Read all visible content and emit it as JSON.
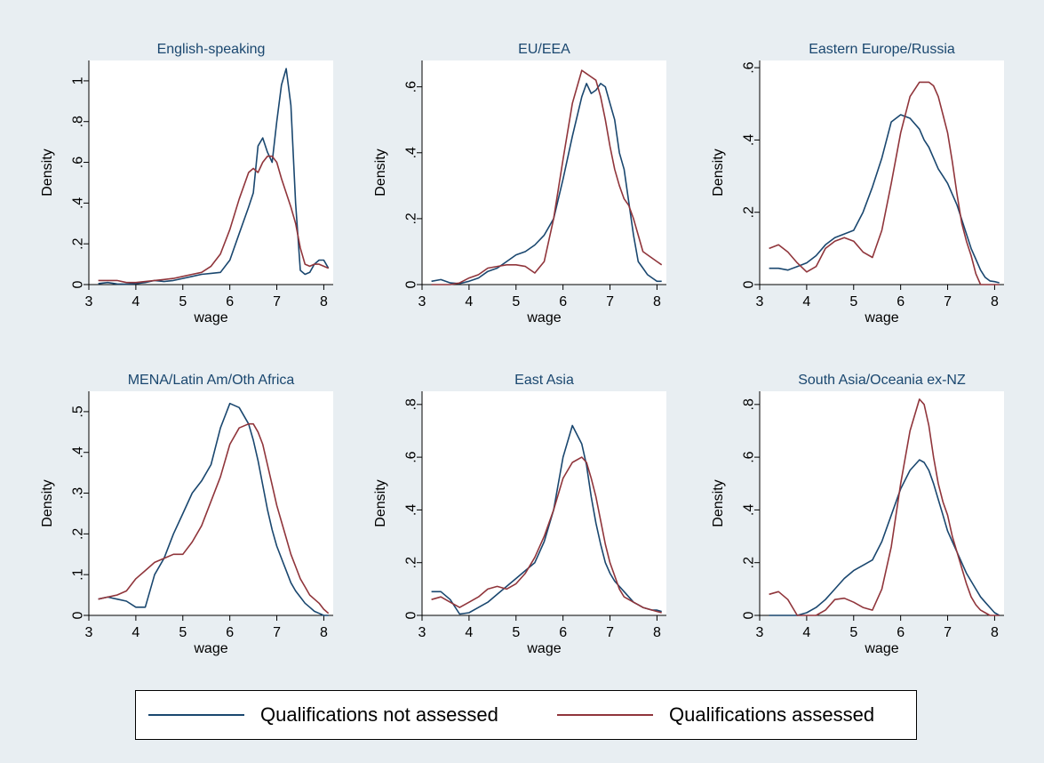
{
  "colors": {
    "background": "#e8eef2",
    "plot_bg": "#ffffff",
    "title": "#1a476f",
    "not_assessed": "#1a476f",
    "assessed": "#90353b"
  },
  "legend": {
    "items": [
      {
        "label": "Qualifications not assessed",
        "color": "#1a476f"
      },
      {
        "label": "Qualifications assessed",
        "color": "#90353b"
      }
    ]
  },
  "chart_data": [
    {
      "type": "line",
      "title": "English-speaking",
      "xlabel": "wage",
      "ylabel": "Density",
      "xlim": [
        3,
        8.2
      ],
      "ylim": [
        0,
        1.1
      ],
      "xticks": [
        3,
        4,
        5,
        6,
        7,
        8
      ],
      "xtick_labels": [
        "3",
        "4",
        "5",
        "6",
        "7",
        "8"
      ],
      "yticks": [
        0,
        0.2,
        0.4,
        0.6,
        0.8,
        1
      ],
      "ytick_labels": [
        "0",
        ".2",
        ".4",
        ".6",
        ".8",
        "1"
      ],
      "series": [
        {
          "name": "Qualifications not assessed",
          "x": [
            3.2,
            3.4,
            3.6,
            3.8,
            4.0,
            4.2,
            4.4,
            4.6,
            4.8,
            5.0,
            5.2,
            5.4,
            5.6,
            5.8,
            6.0,
            6.2,
            6.4,
            6.5,
            6.6,
            6.7,
            6.8,
            6.9,
            7.0,
            7.1,
            7.2,
            7.3,
            7.4,
            7.5,
            7.6,
            7.7,
            7.8,
            7.9,
            8.0,
            8.1
          ],
          "y": [
            0.005,
            0.01,
            0.003,
            0.002,
            0.005,
            0.01,
            0.02,
            0.015,
            0.02,
            0.03,
            0.04,
            0.05,
            0.055,
            0.06,
            0.12,
            0.25,
            0.38,
            0.45,
            0.68,
            0.72,
            0.65,
            0.6,
            0.8,
            0.98,
            1.06,
            0.88,
            0.4,
            0.07,
            0.05,
            0.06,
            0.1,
            0.12,
            0.12,
            0.08
          ]
        },
        {
          "name": "Qualifications assessed",
          "x": [
            3.2,
            3.4,
            3.6,
            3.8,
            4.0,
            4.2,
            4.4,
            4.6,
            4.8,
            5.0,
            5.2,
            5.4,
            5.6,
            5.8,
            6.0,
            6.2,
            6.4,
            6.5,
            6.6,
            6.7,
            6.8,
            6.9,
            7.0,
            7.1,
            7.2,
            7.3,
            7.4,
            7.5,
            7.6,
            7.7,
            7.8,
            7.9,
            8.0,
            8.1
          ],
          "y": [
            0.02,
            0.02,
            0.02,
            0.01,
            0.01,
            0.015,
            0.02,
            0.025,
            0.03,
            0.04,
            0.05,
            0.06,
            0.09,
            0.15,
            0.27,
            0.42,
            0.55,
            0.57,
            0.55,
            0.6,
            0.63,
            0.63,
            0.6,
            0.52,
            0.45,
            0.38,
            0.3,
            0.18,
            0.1,
            0.09,
            0.1,
            0.1,
            0.09,
            0.08
          ]
        }
      ]
    },
    {
      "type": "line",
      "title": "EU/EEA",
      "xlabel": "wage",
      "ylabel": "Density",
      "xlim": [
        3,
        8.2
      ],
      "ylim": [
        0,
        0.68
      ],
      "xticks": [
        3,
        4,
        5,
        6,
        7,
        8
      ],
      "xtick_labels": [
        "3",
        "4",
        "5",
        "6",
        "7",
        "8"
      ],
      "yticks": [
        0,
        0.2,
        0.4,
        0.6
      ],
      "ytick_labels": [
        "0",
        ".2",
        ".4",
        ".6"
      ],
      "series": [
        {
          "name": "Qualifications not assessed",
          "x": [
            3.2,
            3.4,
            3.6,
            3.8,
            4.0,
            4.2,
            4.4,
            4.6,
            4.8,
            5.0,
            5.2,
            5.4,
            5.6,
            5.8,
            6.0,
            6.2,
            6.4,
            6.5,
            6.6,
            6.7,
            6.8,
            6.9,
            7.0,
            7.1,
            7.2,
            7.3,
            7.4,
            7.5,
            7.6,
            7.7,
            7.8,
            7.9,
            8.0,
            8.1
          ],
          "y": [
            0.01,
            0.015,
            0.005,
            0.003,
            0.01,
            0.02,
            0.04,
            0.05,
            0.07,
            0.09,
            0.1,
            0.12,
            0.15,
            0.2,
            0.32,
            0.45,
            0.57,
            0.61,
            0.58,
            0.59,
            0.61,
            0.6,
            0.55,
            0.5,
            0.4,
            0.35,
            0.25,
            0.15,
            0.07,
            0.05,
            0.03,
            0.02,
            0.01,
            0.01
          ]
        },
        {
          "name": "Qualifications assessed",
          "x": [
            3.2,
            3.4,
            3.6,
            3.8,
            4.0,
            4.2,
            4.4,
            4.6,
            4.8,
            5.0,
            5.2,
            5.4,
            5.6,
            5.8,
            6.0,
            6.2,
            6.4,
            6.5,
            6.6,
            6.7,
            6.8,
            6.9,
            7.0,
            7.1,
            7.2,
            7.3,
            7.4,
            7.5,
            7.6,
            7.7,
            7.8,
            7.9,
            8.0,
            8.1
          ],
          "y": [
            0.0,
            0.0,
            0.0,
            0.005,
            0.02,
            0.03,
            0.05,
            0.055,
            0.06,
            0.06,
            0.055,
            0.035,
            0.07,
            0.2,
            0.38,
            0.55,
            0.65,
            0.64,
            0.63,
            0.62,
            0.57,
            0.5,
            0.42,
            0.35,
            0.3,
            0.26,
            0.24,
            0.2,
            0.15,
            0.1,
            0.09,
            0.08,
            0.07,
            0.06
          ]
        }
      ]
    },
    {
      "type": "line",
      "title": "Eastern Europe/Russia",
      "xlabel": "wage",
      "ylabel": "Density",
      "xlim": [
        3,
        8.2
      ],
      "ylim": [
        0,
        0.62
      ],
      "xticks": [
        3,
        4,
        5,
        6,
        7,
        8
      ],
      "xtick_labels": [
        "3",
        "4",
        "5",
        "6",
        "7",
        "8"
      ],
      "yticks": [
        0,
        0.2,
        0.4,
        0.6
      ],
      "ytick_labels": [
        "0",
        ".2",
        ".4",
        ".6"
      ],
      "series": [
        {
          "name": "Qualifications not assessed",
          "x": [
            3.2,
            3.4,
            3.6,
            3.8,
            4.0,
            4.2,
            4.4,
            4.6,
            4.8,
            5.0,
            5.2,
            5.4,
            5.6,
            5.8,
            6.0,
            6.2,
            6.4,
            6.5,
            6.6,
            6.7,
            6.8,
            6.9,
            7.0,
            7.1,
            7.2,
            7.3,
            7.4,
            7.5,
            7.6,
            7.7,
            7.8,
            7.9,
            8.0,
            8.1
          ],
          "y": [
            0.045,
            0.045,
            0.04,
            0.05,
            0.06,
            0.08,
            0.11,
            0.13,
            0.14,
            0.15,
            0.2,
            0.27,
            0.35,
            0.45,
            0.47,
            0.46,
            0.43,
            0.4,
            0.38,
            0.35,
            0.32,
            0.3,
            0.28,
            0.25,
            0.22,
            0.18,
            0.14,
            0.1,
            0.07,
            0.04,
            0.02,
            0.01,
            0.008,
            0.005
          ]
        },
        {
          "name": "Qualifications assessed",
          "x": [
            3.2,
            3.4,
            3.6,
            3.8,
            4.0,
            4.2,
            4.4,
            4.6,
            4.8,
            5.0,
            5.2,
            5.4,
            5.6,
            5.8,
            6.0,
            6.2,
            6.4,
            6.5,
            6.6,
            6.7,
            6.8,
            6.9,
            7.0,
            7.1,
            7.2,
            7.3,
            7.4,
            7.5,
            7.6,
            7.7,
            7.8,
            7.9,
            8.0,
            8.1
          ],
          "y": [
            0.1,
            0.11,
            0.09,
            0.06,
            0.035,
            0.05,
            0.1,
            0.12,
            0.13,
            0.12,
            0.09,
            0.075,
            0.15,
            0.28,
            0.42,
            0.52,
            0.56,
            0.56,
            0.56,
            0.55,
            0.52,
            0.47,
            0.42,
            0.34,
            0.25,
            0.17,
            0.12,
            0.08,
            0.03,
            0.0,
            0.0,
            0.0,
            0.0,
            0.0
          ]
        }
      ]
    },
    {
      "type": "line",
      "title": "MENA/Latin Am/Oth Africa",
      "xlabel": "wage",
      "ylabel": "Density",
      "xlim": [
        3,
        8.2
      ],
      "ylim": [
        0,
        0.55
      ],
      "xticks": [
        3,
        4,
        5,
        6,
        7,
        8
      ],
      "xtick_labels": [
        "3",
        "4",
        "5",
        "6",
        "7",
        "8"
      ],
      "yticks": [
        0,
        0.1,
        0.2,
        0.3,
        0.4,
        0.5
      ],
      "ytick_labels": [
        "0",
        ".1",
        ".2",
        ".3",
        ".4",
        ".5"
      ],
      "series": [
        {
          "name": "Qualifications not assessed",
          "x": [
            3.2,
            3.4,
            3.6,
            3.8,
            4.0,
            4.2,
            4.4,
            4.6,
            4.8,
            5.0,
            5.2,
            5.4,
            5.6,
            5.8,
            6.0,
            6.2,
            6.4,
            6.5,
            6.6,
            6.7,
            6.8,
            6.9,
            7.0,
            7.1,
            7.2,
            7.3,
            7.4,
            7.5,
            7.6,
            7.7,
            7.8,
            7.9,
            8.0,
            8.1
          ],
          "y": [
            0.04,
            0.045,
            0.04,
            0.035,
            0.02,
            0.02,
            0.1,
            0.14,
            0.2,
            0.25,
            0.3,
            0.33,
            0.37,
            0.46,
            0.52,
            0.51,
            0.47,
            0.43,
            0.38,
            0.32,
            0.26,
            0.21,
            0.17,
            0.14,
            0.11,
            0.08,
            0.06,
            0.045,
            0.03,
            0.02,
            0.01,
            0.005,
            0.0,
            0.0
          ]
        },
        {
          "name": "Qualifications assessed",
          "x": [
            3.2,
            3.4,
            3.6,
            3.8,
            4.0,
            4.2,
            4.4,
            4.6,
            4.8,
            5.0,
            5.2,
            5.4,
            5.6,
            5.8,
            6.0,
            6.2,
            6.4,
            6.5,
            6.6,
            6.7,
            6.8,
            6.9,
            7.0,
            7.1,
            7.2,
            7.3,
            7.4,
            7.5,
            7.6,
            7.7,
            7.8,
            7.9,
            8.0,
            8.1
          ],
          "y": [
            0.04,
            0.045,
            0.05,
            0.06,
            0.09,
            0.11,
            0.13,
            0.14,
            0.15,
            0.15,
            0.18,
            0.22,
            0.28,
            0.34,
            0.42,
            0.46,
            0.47,
            0.47,
            0.45,
            0.42,
            0.37,
            0.32,
            0.27,
            0.23,
            0.19,
            0.15,
            0.12,
            0.09,
            0.07,
            0.05,
            0.04,
            0.03,
            0.015,
            0.005
          ]
        }
      ]
    },
    {
      "type": "line",
      "title": "East Asia",
      "xlabel": "wage",
      "ylabel": "Density",
      "xlim": [
        3,
        8.2
      ],
      "ylim": [
        0,
        0.85
      ],
      "xticks": [
        3,
        4,
        5,
        6,
        7,
        8
      ],
      "xtick_labels": [
        "3",
        "4",
        "5",
        "6",
        "7",
        "8"
      ],
      "yticks": [
        0,
        0.2,
        0.4,
        0.6,
        0.8
      ],
      "ytick_labels": [
        "0",
        ".2",
        ".4",
        ".6",
        ".8"
      ],
      "series": [
        {
          "name": "Qualifications not assessed",
          "x": [
            3.2,
            3.4,
            3.6,
            3.8,
            4.0,
            4.2,
            4.4,
            4.6,
            4.8,
            5.0,
            5.2,
            5.4,
            5.6,
            5.8,
            6.0,
            6.2,
            6.4,
            6.5,
            6.6,
            6.7,
            6.8,
            6.9,
            7.0,
            7.1,
            7.2,
            7.3,
            7.4,
            7.5,
            7.6,
            7.7,
            7.8,
            7.9,
            8.0,
            8.1
          ],
          "y": [
            0.09,
            0.09,
            0.06,
            0.005,
            0.01,
            0.03,
            0.05,
            0.08,
            0.11,
            0.14,
            0.17,
            0.2,
            0.28,
            0.4,
            0.6,
            0.72,
            0.65,
            0.57,
            0.45,
            0.35,
            0.27,
            0.2,
            0.16,
            0.13,
            0.11,
            0.09,
            0.07,
            0.05,
            0.04,
            0.03,
            0.025,
            0.02,
            0.02,
            0.015
          ]
        },
        {
          "name": "Qualifications assessed",
          "x": [
            3.2,
            3.4,
            3.6,
            3.8,
            4.0,
            4.2,
            4.4,
            4.6,
            4.8,
            5.0,
            5.2,
            5.4,
            5.6,
            5.8,
            6.0,
            6.2,
            6.4,
            6.5,
            6.6,
            6.7,
            6.8,
            6.9,
            7.0,
            7.1,
            7.2,
            7.3,
            7.4,
            7.5,
            7.6,
            7.7,
            7.8,
            7.9,
            8.0,
            8.1
          ],
          "y": [
            0.06,
            0.07,
            0.05,
            0.03,
            0.05,
            0.07,
            0.1,
            0.11,
            0.1,
            0.12,
            0.16,
            0.22,
            0.3,
            0.4,
            0.52,
            0.58,
            0.6,
            0.58,
            0.52,
            0.45,
            0.36,
            0.27,
            0.2,
            0.15,
            0.1,
            0.07,
            0.06,
            0.05,
            0.04,
            0.03,
            0.025,
            0.02,
            0.015,
            0.01
          ]
        }
      ]
    },
    {
      "type": "line",
      "title": "South Asia/Oceania ex-NZ",
      "xlabel": "wage",
      "ylabel": "Density",
      "xlim": [
        3,
        8.2
      ],
      "ylim": [
        0,
        0.85
      ],
      "xticks": [
        3,
        4,
        5,
        6,
        7,
        8
      ],
      "xtick_labels": [
        "3",
        "4",
        "5",
        "6",
        "7",
        "8"
      ],
      "yticks": [
        0,
        0.2,
        0.4,
        0.6,
        0.8
      ],
      "ytick_labels": [
        "0",
        ".2",
        ".4",
        ".6",
        ".8"
      ],
      "series": [
        {
          "name": "Qualifications not assessed",
          "x": [
            3.2,
            3.4,
            3.6,
            3.8,
            4.0,
            4.2,
            4.4,
            4.6,
            4.8,
            5.0,
            5.2,
            5.4,
            5.6,
            5.8,
            6.0,
            6.2,
            6.4,
            6.5,
            6.6,
            6.7,
            6.8,
            6.9,
            7.0,
            7.1,
            7.2,
            7.3,
            7.4,
            7.5,
            7.6,
            7.7,
            7.8,
            7.9,
            8.0,
            8.1
          ],
          "y": [
            0.0,
            0.0,
            0.0,
            0.0,
            0.01,
            0.03,
            0.06,
            0.1,
            0.14,
            0.17,
            0.19,
            0.21,
            0.28,
            0.38,
            0.48,
            0.55,
            0.59,
            0.58,
            0.55,
            0.5,
            0.44,
            0.38,
            0.32,
            0.28,
            0.24,
            0.2,
            0.16,
            0.13,
            0.1,
            0.07,
            0.05,
            0.03,
            0.01,
            0.0
          ]
        },
        {
          "name": "Qualifications assessed",
          "x": [
            3.2,
            3.4,
            3.6,
            3.8,
            4.0,
            4.2,
            4.4,
            4.6,
            4.8,
            5.0,
            5.2,
            5.4,
            5.6,
            5.8,
            6.0,
            6.2,
            6.4,
            6.5,
            6.6,
            6.7,
            6.8,
            6.9,
            7.0,
            7.1,
            7.2,
            7.3,
            7.4,
            7.5,
            7.6,
            7.7,
            7.8,
            7.9,
            8.0,
            8.1
          ],
          "y": [
            0.08,
            0.09,
            0.06,
            0.0,
            0.0,
            0.0,
            0.02,
            0.06,
            0.065,
            0.05,
            0.03,
            0.02,
            0.1,
            0.26,
            0.5,
            0.7,
            0.82,
            0.8,
            0.72,
            0.6,
            0.5,
            0.43,
            0.38,
            0.3,
            0.24,
            0.18,
            0.12,
            0.07,
            0.04,
            0.02,
            0.01,
            0.0,
            0.0,
            0.0
          ]
        }
      ]
    }
  ]
}
